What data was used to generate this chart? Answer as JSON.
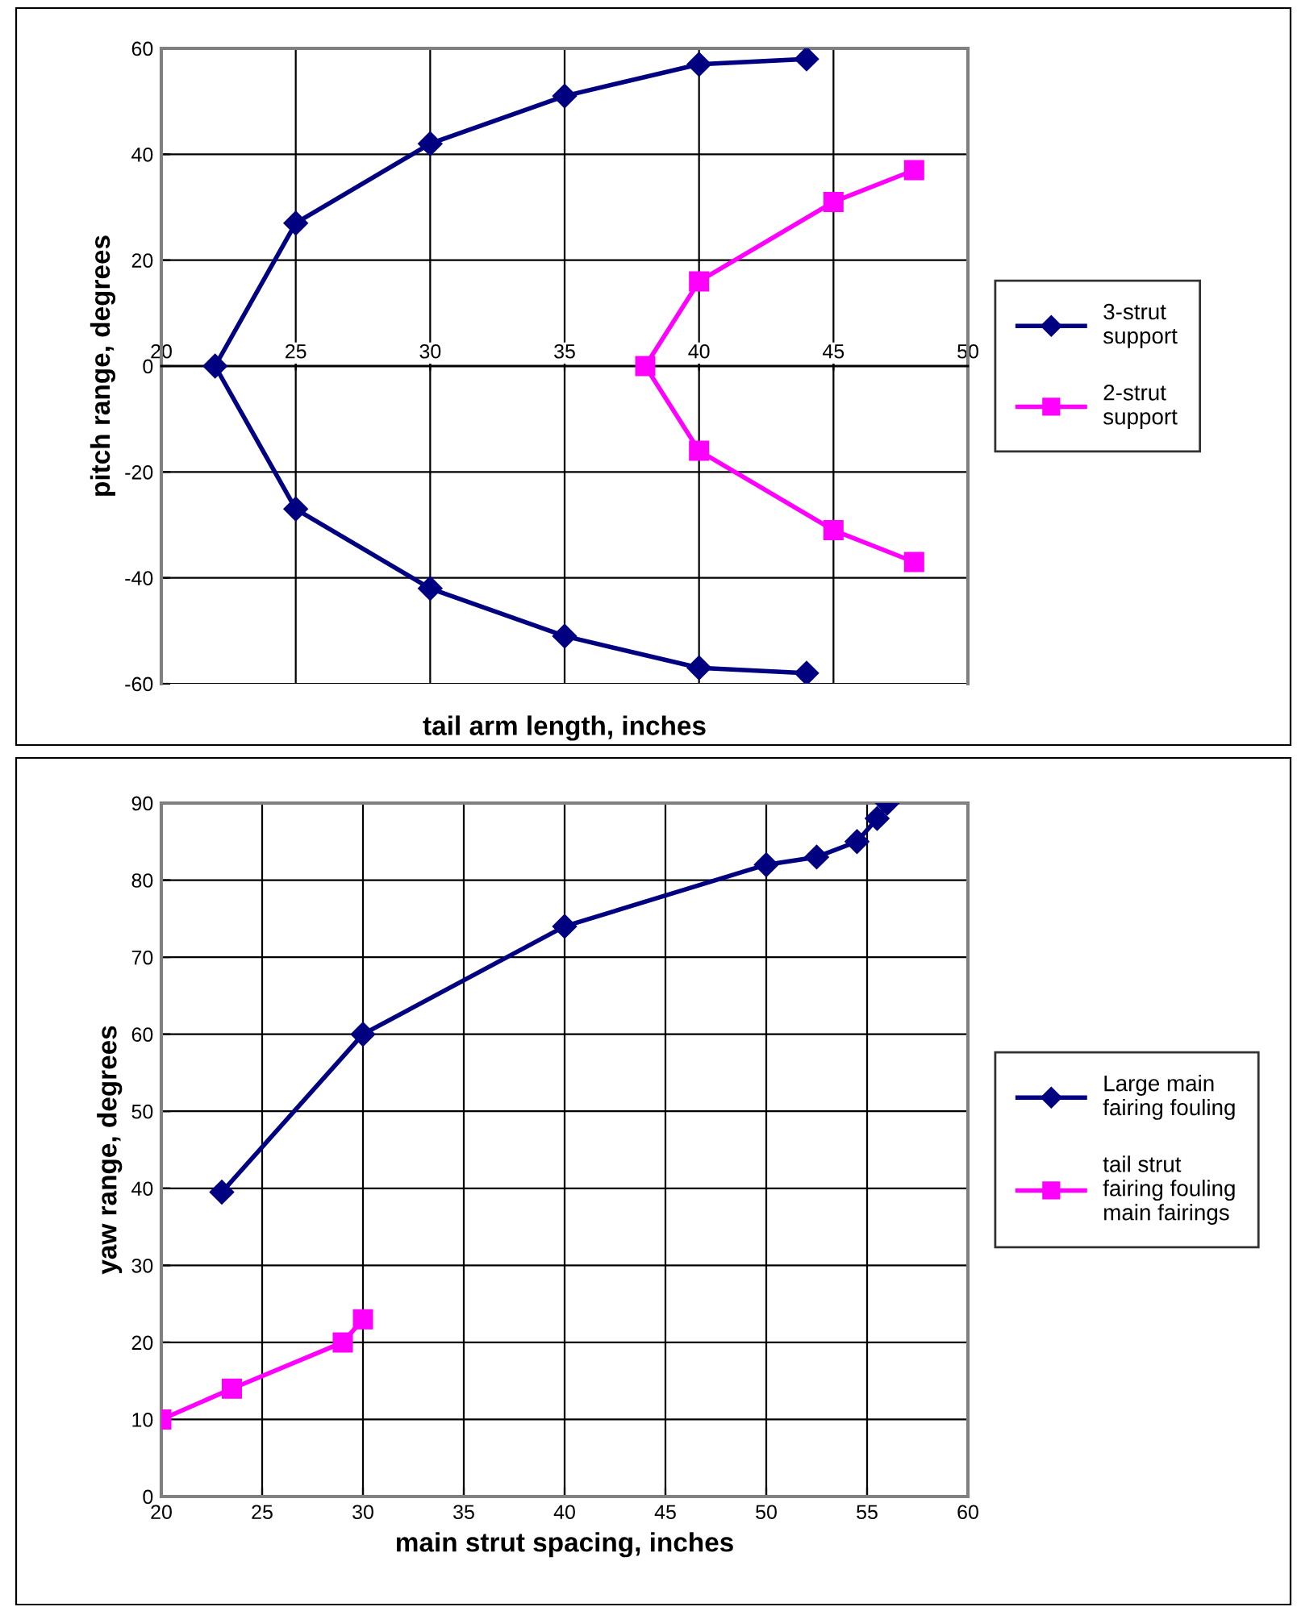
{
  "chart_data": [
    {
      "type": "line",
      "xlabel": "tail arm length, inches",
      "ylabel": "pitch range, degrees",
      "xlim": [
        20,
        50
      ],
      "xticks": [
        20,
        25,
        30,
        35,
        40,
        45,
        50
      ],
      "ylim": [
        -60,
        60
      ],
      "yticks": [
        -60,
        -40,
        -20,
        0,
        20,
        40,
        60
      ],
      "grid": true,
      "legend": "right",
      "series": [
        {
          "name": "3-strut\nsupport",
          "color": "#000080",
          "marker": "diamond",
          "x": [
            44,
            40,
            35,
            30,
            25,
            22,
            25,
            30,
            35,
            40,
            44
          ],
          "values": [
            58,
            57,
            51,
            42,
            27,
            0,
            -27,
            -42,
            -51,
            -57,
            -58
          ]
        },
        {
          "name": "2-strut\nsupport",
          "color": "#ff00ff",
          "marker": "square",
          "x": [
            48,
            45,
            40,
            38,
            40,
            45,
            48
          ],
          "values": [
            37,
            31,
            16,
            0,
            -16,
            -31,
            -37
          ]
        }
      ]
    },
    {
      "type": "line",
      "xlabel": "main strut spacing, inches",
      "ylabel": "yaw range, degrees",
      "xlim": [
        20,
        60
      ],
      "xticks": [
        20,
        25,
        30,
        35,
        40,
        45,
        50,
        55,
        60
      ],
      "ylim": [
        0,
        90
      ],
      "yticks": [
        0,
        10,
        20,
        30,
        40,
        50,
        60,
        70,
        80,
        90
      ],
      "grid": true,
      "legend": "right",
      "series": [
        {
          "name": "Large main\nfairing fouling",
          "color": "#000080",
          "marker": "diamond",
          "x": [
            23,
            30,
            40,
            50,
            52.5,
            54.5,
            55.5,
            56
          ],
          "values": [
            39.5,
            60,
            74,
            82,
            83,
            85,
            88,
            90
          ]
        },
        {
          "name": "tail strut\nfairing fouling\nmain fairings",
          "color": "#ff00ff",
          "marker": "square",
          "x": [
            20,
            23.5,
            29,
            30
          ],
          "values": [
            10,
            14,
            20,
            23
          ]
        }
      ]
    }
  ]
}
